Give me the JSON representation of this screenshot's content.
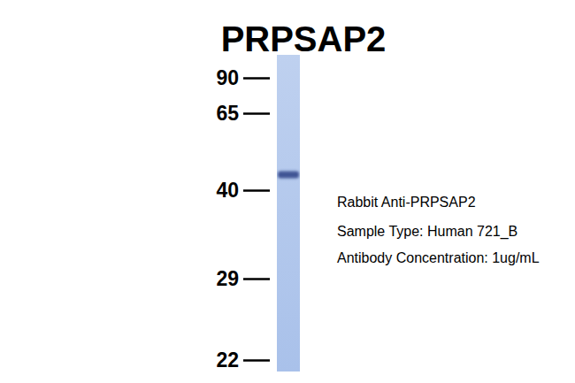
{
  "chart_data": {
    "type": "western_blot",
    "title": "PRPSAP2",
    "values": [
      45
    ],
    "ylim": [
      22,
      90
    ],
    "yticks": [
      22,
      29,
      40,
      65,
      90
    ],
    "annotations": [
      "Rabbit Anti-PRPSAP2",
      "Sample Type: Human 721_B",
      "Antibody Concentration: 1ug/mL"
    ],
    "color": "#a9c1ea"
  }
}
